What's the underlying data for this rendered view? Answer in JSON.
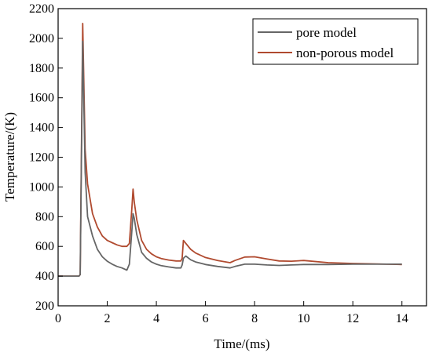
{
  "chart_data": {
    "type": "line",
    "title": "",
    "xlabel": "Time/(ms)",
    "ylabel": "Temperature/(K)",
    "xlim": [
      0,
      15
    ],
    "ylim": [
      200,
      2200
    ],
    "xticks": [
      0,
      2,
      4,
      6,
      8,
      10,
      12,
      14
    ],
    "yticks": [
      200,
      400,
      600,
      800,
      1000,
      1200,
      1400,
      1600,
      1800,
      2000,
      2200
    ],
    "grid": false,
    "legend_position": "top-right",
    "series": [
      {
        "name": "pore model",
        "color": "#666666",
        "x": [
          0,
          0.8,
          0.85,
          0.9,
          1.0,
          1.1,
          1.2,
          1.4,
          1.6,
          1.8,
          2.0,
          2.2,
          2.4,
          2.6,
          2.8,
          2.9,
          3.0,
          3.05,
          3.1,
          3.2,
          3.4,
          3.6,
          3.8,
          4.0,
          4.2,
          4.5,
          4.8,
          5.0,
          5.05,
          5.1,
          5.2,
          5.4,
          5.6,
          6.0,
          6.5,
          7.0,
          7.2,
          7.6,
          8.0,
          8.5,
          9.0,
          9.5,
          10.0,
          11.0,
          12.0,
          13.0,
          14.0
        ],
        "y": [
          400,
          400,
          400,
          410,
          1980,
          1100,
          800,
          670,
          580,
          530,
          500,
          480,
          465,
          455,
          440,
          480,
          700,
          820,
          790,
          680,
          560,
          520,
          495,
          480,
          470,
          462,
          455,
          455,
          475,
          520,
          535,
          510,
          495,
          478,
          465,
          455,
          465,
          480,
          480,
          475,
          472,
          475,
          478,
          478,
          480,
          480,
          480
        ]
      },
      {
        "name": "non-porous model",
        "color": "#b04a2f",
        "x": [
          0,
          0.8,
          0.85,
          0.9,
          1.0,
          1.1,
          1.2,
          1.4,
          1.6,
          1.8,
          2.0,
          2.2,
          2.4,
          2.6,
          2.8,
          2.9,
          3.0,
          3.05,
          3.1,
          3.2,
          3.4,
          3.6,
          3.8,
          4.0,
          4.2,
          4.5,
          4.8,
          5.0,
          5.05,
          5.1,
          5.2,
          5.4,
          5.6,
          6.0,
          6.5,
          7.0,
          7.2,
          7.6,
          8.0,
          8.5,
          9.0,
          9.5,
          10.0,
          11.0,
          12.0,
          13.0,
          14.0
        ],
        "y": [
          400,
          400,
          400,
          410,
          2100,
          1250,
          1020,
          820,
          730,
          670,
          640,
          625,
          610,
          600,
          600,
          620,
          850,
          985,
          900,
          780,
          640,
          580,
          550,
          530,
          518,
          508,
          502,
          502,
          520,
          640,
          620,
          580,
          555,
          525,
          505,
          490,
          505,
          528,
          530,
          515,
          502,
          500,
          505,
          490,
          485,
          482,
          478
        ]
      }
    ]
  }
}
